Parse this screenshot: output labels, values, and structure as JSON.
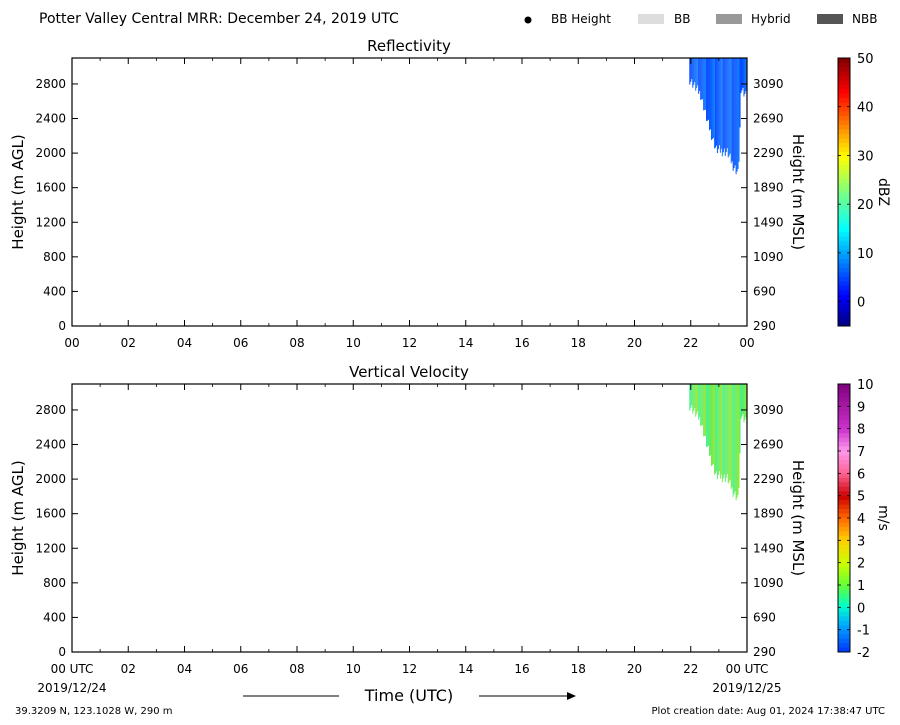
{
  "header": {
    "title": "Potter Valley Central MRR:  December 24, 2019 UTC",
    "legend": [
      {
        "label": "BB Height",
        "marker": "dot",
        "color": "#000000"
      },
      {
        "label": "BB",
        "marker": "box",
        "color": "#dddddd"
      },
      {
        "label": "Hybrid",
        "marker": "box",
        "color": "#999999"
      },
      {
        "label": "NBB",
        "marker": "box",
        "color": "#555555"
      }
    ]
  },
  "footer": {
    "start_label": "00 UTC",
    "start_date": "2019/12/24",
    "end_label": "00 UTC",
    "end_date": "2019/12/25",
    "xlabel": "Time (UTC)",
    "location": "39.3209 N, 123.1028 W, 290 m",
    "created": "Plot creation date: Aug 01, 2024 17:38:47 UTC"
  },
  "chart_data": [
    {
      "type": "heatmap",
      "title": "Reflectivity",
      "xlabel": "",
      "ylabel": "Height (m AGL)",
      "ylabel_right": "Height (m MSL)",
      "xlim": [
        0,
        24
      ],
      "ylim": [
        0,
        3100
      ],
      "x_ticks": [
        "00",
        "02",
        "04",
        "06",
        "08",
        "10",
        "12",
        "14",
        "16",
        "18",
        "20",
        "22",
        "00"
      ],
      "y_ticks": [
        0,
        400,
        800,
        1200,
        1600,
        2000,
        2400,
        2800
      ],
      "y_ticks_right": [
        290,
        690,
        1090,
        1490,
        1890,
        2290,
        2690,
        3090
      ],
      "colorbar": {
        "label": "dBZ",
        "range": [
          -5,
          50
        ],
        "ticks": [
          0,
          10,
          20,
          30,
          40,
          50
        ],
        "colormap": "jet"
      },
      "echo": {
        "top_m": 3100,
        "color_low": "#0040ff",
        "color_high": "#0a78ff",
        "bottom_profile": [
          {
            "hour": 21.95,
            "bottom_m": 2800
          },
          {
            "hour": 22.35,
            "bottom_m": 2620
          },
          {
            "hour": 22.6,
            "bottom_m": 2300
          },
          {
            "hour": 22.9,
            "bottom_m": 1980
          },
          {
            "hour": 23.3,
            "bottom_m": 1950
          },
          {
            "hour": 23.5,
            "bottom_m": 1800
          },
          {
            "hour": 23.7,
            "bottom_m": 1700
          },
          {
            "hour": 23.8,
            "bottom_m": 2700
          },
          {
            "hour": 24.0,
            "bottom_m": 2600
          }
        ],
        "value_range_dbz": [
          2,
          8
        ]
      }
    },
    {
      "type": "heatmap",
      "title": "Vertical Velocity",
      "xlabel": "Time (UTC)",
      "ylabel": "Height (m AGL)",
      "ylabel_right": "Height (m MSL)",
      "xlim": [
        0,
        24
      ],
      "ylim": [
        0,
        3100
      ],
      "x_ticks": [
        "00 UTC",
        "02",
        "04",
        "06",
        "08",
        "10",
        "12",
        "14",
        "16",
        "18",
        "20",
        "22",
        "00 UTC"
      ],
      "y_ticks": [
        0,
        400,
        800,
        1200,
        1600,
        2000,
        2400,
        2800
      ],
      "y_ticks_right": [
        290,
        690,
        1090,
        1490,
        1890,
        2290,
        2690,
        3090
      ],
      "colorbar": {
        "label": "m/s",
        "range": [
          -2,
          10
        ],
        "ticks": [
          -2,
          -1,
          0,
          1,
          2,
          3,
          4,
          5,
          6,
          7,
          8,
          9,
          10
        ],
        "colormap": "velocity"
      },
      "echo": {
        "top_m": 3100,
        "color_low": "#3cf08c",
        "color_high": "#8ee82a",
        "bottom_profile": [
          {
            "hour": 21.95,
            "bottom_m": 2800
          },
          {
            "hour": 22.35,
            "bottom_m": 2620
          },
          {
            "hour": 22.6,
            "bottom_m": 2300
          },
          {
            "hour": 22.9,
            "bottom_m": 1980
          },
          {
            "hour": 23.3,
            "bottom_m": 1950
          },
          {
            "hour": 23.5,
            "bottom_m": 1800
          },
          {
            "hour": 23.7,
            "bottom_m": 1700
          },
          {
            "hour": 23.8,
            "bottom_m": 2700
          },
          {
            "hour": 24.0,
            "bottom_m": 2600
          }
        ],
        "value_range_ms": [
          0.5,
          1.5
        ]
      }
    }
  ]
}
